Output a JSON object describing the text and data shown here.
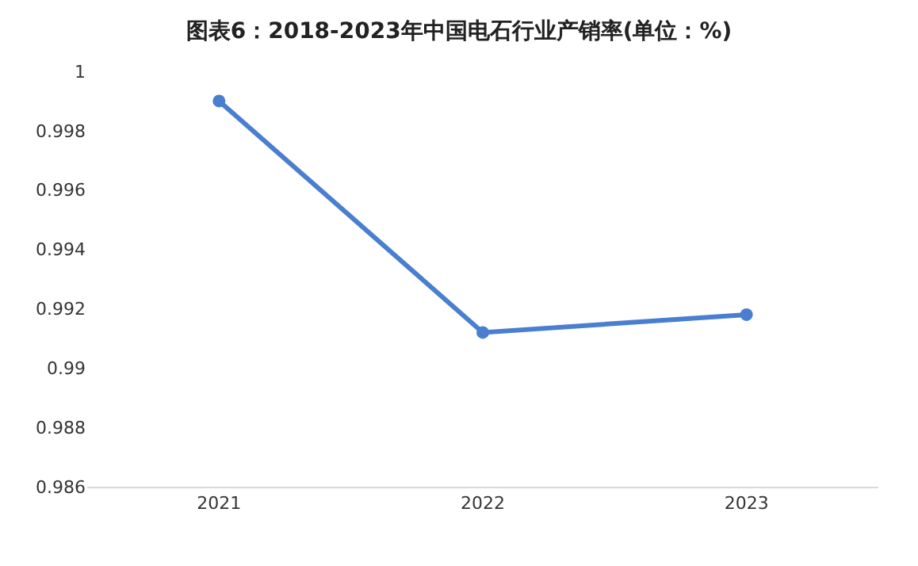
{
  "chart_data": {
    "type": "line",
    "title": "图表6：2018-2023年中国电石行业产销率(单位：%)",
    "categories": [
      "2021",
      "2022",
      "2023"
    ],
    "series": [
      {
        "color": "#4a7fcf",
        "values": [
          0.999,
          0.9912,
          0.9918
        ]
      }
    ],
    "ylim": [
      0.986,
      1
    ],
    "yticks": [
      0.986,
      0.988,
      0.99,
      0.992,
      0.994,
      0.996,
      0.998,
      1
    ],
    "grid": false,
    "marker": "circle",
    "line_style": "solid"
  }
}
